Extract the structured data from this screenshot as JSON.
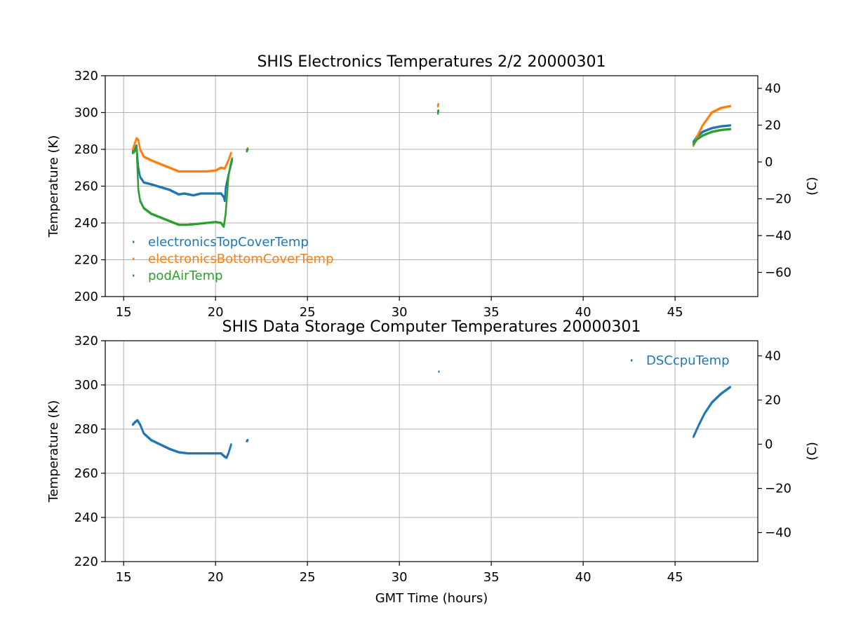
{
  "chart_data": [
    {
      "type": "scatter",
      "title": "SHIS Electronics Temperatures 2/2 20000301",
      "xlabel": "",
      "ylabel": "Temperature (K)",
      "ylabel_right": "(C)",
      "xlim": [
        14,
        49.5
      ],
      "ylim": [
        200,
        320
      ],
      "ylim_right": [
        -73.15,
        46.85
      ],
      "xticks": [
        "15",
        "20",
        "25",
        "30",
        "35",
        "40",
        "45"
      ],
      "yticks": [
        "200",
        "220",
        "240",
        "260",
        "280",
        "300",
        "320"
      ],
      "yticks_right": [
        "−60",
        "−40",
        "−20",
        "0",
        "20",
        "40"
      ],
      "grid": true,
      "legend_position": "lower-left",
      "series": [
        {
          "name": "electronicsTopCoverTemp",
          "color": "#1f77b4",
          "segments": [
            [
              [
                15.5,
                279
              ],
              [
                15.6,
                280
              ],
              [
                15.7,
                282
              ],
              [
                15.8,
                270
              ],
              [
                15.9,
                265
              ],
              [
                16.1,
                262
              ],
              [
                16.5,
                261
              ],
              [
                17,
                259.5
              ],
              [
                17.5,
                258
              ],
              [
                18,
                255.5
              ],
              [
                18.3,
                256
              ],
              [
                18.8,
                255
              ],
              [
                19.2,
                256
              ],
              [
                19.6,
                256
              ],
              [
                20,
                256
              ],
              [
                20.3,
                256
              ],
              [
                20.45,
                254
              ],
              [
                20.5,
                252
              ],
              [
                20.55,
                259
              ],
              [
                20.7,
                266
              ],
              [
                20.8,
                270
              ],
              [
                20.9,
                274
              ]
            ],
            [
              [
                21.7,
                279.5
              ],
              [
                21.75,
                280
              ]
            ],
            [
              [
                32.1,
                300.5
              ],
              [
                32.12,
                301
              ]
            ],
            [
              [
                46,
                284
              ],
              [
                46.2,
                287
              ],
              [
                46.5,
                289.5
              ],
              [
                47,
                291.5
              ],
              [
                47.5,
                292.5
              ],
              [
                48,
                293
              ]
            ]
          ]
        },
        {
          "name": "electronicsBottomCoverTemp",
          "color": "#ff7f0e",
          "segments": [
            [
              [
                15.5,
                280
              ],
              [
                15.6,
                283
              ],
              [
                15.7,
                286
              ],
              [
                15.8,
                285
              ],
              [
                15.9,
                280
              ],
              [
                16.1,
                276
              ],
              [
                16.5,
                274
              ],
              [
                17,
                272
              ],
              [
                17.5,
                270
              ],
              [
                18,
                268
              ],
              [
                18.5,
                268
              ],
              [
                19,
                268
              ],
              [
                19.5,
                268
              ],
              [
                20,
                268.5
              ],
              [
                20.3,
                270
              ],
              [
                20.5,
                269.5
              ],
              [
                20.7,
                274
              ],
              [
                20.85,
                278
              ]
            ],
            [
              [
                21.7,
                279.5
              ],
              [
                21.75,
                280.5
              ]
            ],
            [
              [
                32.1,
                303.5
              ],
              [
                32.12,
                304.5
              ]
            ],
            [
              [
                46,
                282
              ],
              [
                46.2,
                287
              ],
              [
                46.5,
                293
              ],
              [
                47,
                300
              ],
              [
                47.5,
                302.5
              ],
              [
                48,
                303.5
              ]
            ]
          ]
        },
        {
          "name": "podAirTemp",
          "color": "#2ca02c",
          "segments": [
            [
              [
                15.5,
                278
              ],
              [
                15.6,
                279
              ],
              [
                15.7,
                282
              ],
              [
                15.8,
                258
              ],
              [
                15.9,
                252
              ],
              [
                16.1,
                248
              ],
              [
                16.5,
                245
              ],
              [
                17,
                243
              ],
              [
                17.5,
                241
              ],
              [
                18,
                239
              ],
              [
                18.5,
                239
              ],
              [
                19,
                239.5
              ],
              [
                19.5,
                240
              ],
              [
                20,
                240.5
              ],
              [
                20.3,
                240
              ],
              [
                20.45,
                238
              ],
              [
                20.55,
                245
              ],
              [
                20.7,
                265
              ],
              [
                20.8,
                271
              ],
              [
                20.9,
                275
              ]
            ],
            [
              [
                21.7,
                279
              ],
              [
                21.75,
                280
              ]
            ],
            [
              [
                32.1,
                299.5
              ],
              [
                32.12,
                301
              ]
            ],
            [
              [
                46,
                283
              ],
              [
                46.2,
                285.5
              ],
              [
                46.5,
                287.5
              ],
              [
                47,
                289.5
              ],
              [
                47.5,
                290.5
              ],
              [
                48,
                291
              ]
            ]
          ]
        }
      ]
    },
    {
      "type": "scatter",
      "title": "SHIS Data Storage Computer Temperatures 20000301",
      "xlabel": "GMT Time (hours)",
      "ylabel": "Temperature (K)",
      "ylabel_right": "(C)",
      "xlim": [
        14,
        49.5
      ],
      "ylim": [
        220,
        320
      ],
      "ylim_right": [
        -53.15,
        46.85
      ],
      "xticks": [
        "15",
        "20",
        "25",
        "30",
        "35",
        "40",
        "45"
      ],
      "yticks": [
        "220",
        "240",
        "260",
        "280",
        "300",
        "320"
      ],
      "yticks_right": [
        "−40",
        "−20",
        "0",
        "20",
        "40"
      ],
      "grid": true,
      "legend_position": "upper-right",
      "series": [
        {
          "name": "DSCcpuTemp",
          "color": "#1f77b4",
          "segments": [
            [
              [
                15.5,
                282
              ],
              [
                15.6,
                283
              ],
              [
                15.75,
                284
              ],
              [
                15.9,
                282
              ],
              [
                16.1,
                278
              ],
              [
                16.5,
                275
              ],
              [
                17,
                273
              ],
              [
                17.5,
                271
              ],
              [
                18,
                269.5
              ],
              [
                18.5,
                269
              ],
              [
                19,
                269
              ],
              [
                19.5,
                269
              ],
              [
                20,
                269
              ],
              [
                20.3,
                269
              ],
              [
                20.5,
                267.5
              ],
              [
                20.6,
                267
              ],
              [
                20.7,
                269
              ],
              [
                20.85,
                273
              ]
            ],
            [
              [
                21.7,
                274.5
              ],
              [
                21.75,
                275
              ]
            ],
            [
              [
                32.15,
                306
              ]
            ],
            [
              [
                46,
                276.5
              ],
              [
                46.3,
                282
              ],
              [
                46.6,
                287
              ],
              [
                47,
                292
              ],
              [
                47.5,
                296
              ],
              [
                48,
                299
              ]
            ]
          ]
        }
      ]
    }
  ]
}
